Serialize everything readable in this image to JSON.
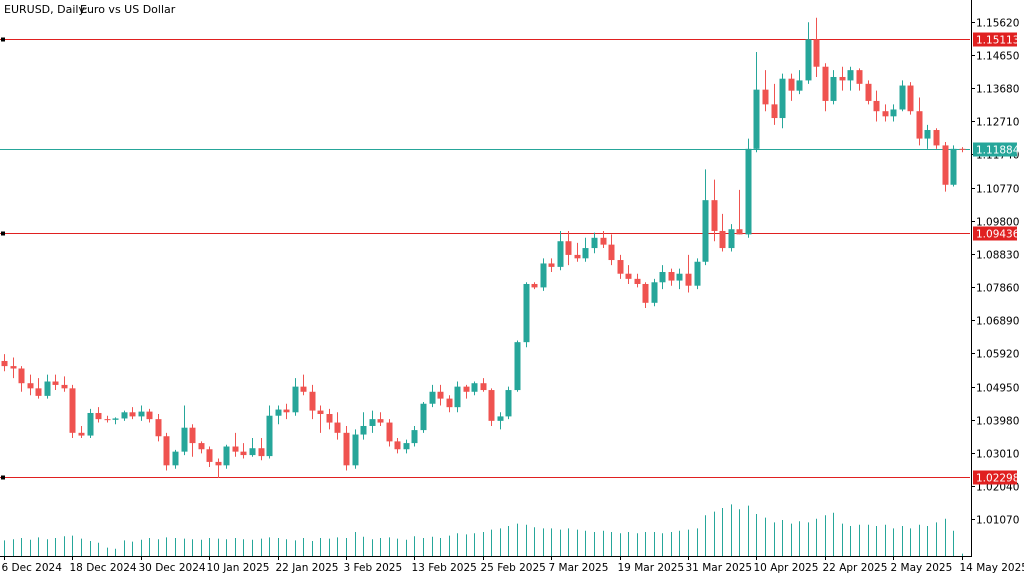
{
  "chart_data": {
    "type": "candlestick",
    "header": {
      "symbol": "EURUSD, Daily:",
      "description": "Euro vs US Dollar"
    },
    "ylim": [
      1.0,
      1.1625
    ],
    "y_ticks": [
      "1.15620",
      "1.14650",
      "1.13680",
      "1.12710",
      "1.11740",
      "1.10770",
      "1.09800",
      "1.08830",
      "1.07860",
      "1.06890",
      "1.05920",
      "1.04950",
      "1.03980",
      "1.03010",
      "1.02040",
      "1.01070"
    ],
    "x_ticks": [
      "6 Dec 2024",
      "18 Dec 2024",
      "30 Dec 2024",
      "10 Jan 2025",
      "22 Jan 2025",
      "3 Feb 2025",
      "13 Feb 2025",
      "25 Feb 2025",
      "7 Mar 2025",
      "19 Mar 2025",
      "31 Mar 2025",
      "10 Apr 2025",
      "22 Apr 2025",
      "2 May 2025",
      "14 May 2025"
    ],
    "x_tick_candle_index": [
      0,
      8,
      16,
      24,
      32,
      40,
      48,
      56,
      64,
      72,
      80,
      88,
      96,
      104,
      112
    ],
    "horizontal_lines": [
      {
        "value": 1.15113,
        "label": "1.15113",
        "color": "#e02020"
      },
      {
        "value": 1.11884,
        "label": "1.11884",
        "color": "#26a69a"
      },
      {
        "value": 1.09436,
        "label": "1.09436",
        "color": "#e02020"
      },
      {
        "value": 1.02298,
        "label": "1.02298",
        "color": "#e02020"
      }
    ],
    "colors": {
      "bull": "#26a69a",
      "bear": "#ef5350",
      "volume": "#26a69a",
      "axis": "#000000"
    },
    "candles": [
      {
        "o": 1.057,
        "h": 1.059,
        "l": 1.054,
        "c": 1.0555
      },
      {
        "o": 1.0555,
        "h": 1.058,
        "l": 1.052,
        "c": 1.0548
      },
      {
        "o": 1.0548,
        "h": 1.0555,
        "l": 1.048,
        "c": 1.0505
      },
      {
        "o": 1.0505,
        "h": 1.053,
        "l": 1.047,
        "c": 1.049
      },
      {
        "o": 1.049,
        "h": 1.052,
        "l": 1.046,
        "c": 1.0468
      },
      {
        "o": 1.0468,
        "h": 1.053,
        "l": 1.046,
        "c": 1.051
      },
      {
        "o": 1.051,
        "h": 1.053,
        "l": 1.0485,
        "c": 1.05
      },
      {
        "o": 1.05,
        "h": 1.0525,
        "l": 1.048,
        "c": 1.049
      },
      {
        "o": 1.049,
        "h": 1.05,
        "l": 1.0345,
        "c": 1.036
      },
      {
        "o": 1.036,
        "h": 1.038,
        "l": 1.0345,
        "c": 1.0352
      },
      {
        "o": 1.0352,
        "h": 1.043,
        "l": 1.0345,
        "c": 1.0418
      },
      {
        "o": 1.0418,
        "h": 1.0435,
        "l": 1.039,
        "c": 1.04
      },
      {
        "o": 1.04,
        "h": 1.041,
        "l": 1.039,
        "c": 1.0398
      },
      {
        "o": 1.0398,
        "h": 1.0405,
        "l": 1.0385,
        "c": 1.0402
      },
      {
        "o": 1.0402,
        "h": 1.0425,
        "l": 1.0395,
        "c": 1.042
      },
      {
        "o": 1.042,
        "h": 1.0435,
        "l": 1.04,
        "c": 1.0408
      },
      {
        "o": 1.0408,
        "h": 1.044,
        "l": 1.0395,
        "c": 1.0422
      },
      {
        "o": 1.0422,
        "h": 1.043,
        "l": 1.039,
        "c": 1.04
      },
      {
        "o": 1.04,
        "h": 1.0415,
        "l": 1.0335,
        "c": 1.035
      },
      {
        "o": 1.035,
        "h": 1.036,
        "l": 1.025,
        "c": 1.0265
      },
      {
        "o": 1.0265,
        "h": 1.031,
        "l": 1.0255,
        "c": 1.0305
      },
      {
        "o": 1.0305,
        "h": 1.044,
        "l": 1.0295,
        "c": 1.0375
      },
      {
        "o": 1.0375,
        "h": 1.0385,
        "l": 1.029,
        "c": 1.033
      },
      {
        "o": 1.033,
        "h": 1.0335,
        "l": 1.03,
        "c": 1.0312
      },
      {
        "o": 1.0312,
        "h": 1.032,
        "l": 1.026,
        "c": 1.0275
      },
      {
        "o": 1.0275,
        "h": 1.0285,
        "l": 1.0228,
        "c": 1.0265
      },
      {
        "o": 1.0265,
        "h": 1.0325,
        "l": 1.0255,
        "c": 1.032
      },
      {
        "o": 1.032,
        "h": 1.036,
        "l": 1.029,
        "c": 1.0305
      },
      {
        "o": 1.0305,
        "h": 1.033,
        "l": 1.0285,
        "c": 1.0295
      },
      {
        "o": 1.0295,
        "h": 1.0345,
        "l": 1.029,
        "c": 1.0315
      },
      {
        "o": 1.0315,
        "h": 1.0345,
        "l": 1.028,
        "c": 1.0292
      },
      {
        "o": 1.0292,
        "h": 1.044,
        "l": 1.0285,
        "c": 1.041
      },
      {
        "o": 1.041,
        "h": 1.044,
        "l": 1.0385,
        "c": 1.0428
      },
      {
        "o": 1.0428,
        "h": 1.0445,
        "l": 1.04,
        "c": 1.042
      },
      {
        "o": 1.042,
        "h": 1.052,
        "l": 1.041,
        "c": 1.0495
      },
      {
        "o": 1.0495,
        "h": 1.053,
        "l": 1.047,
        "c": 1.048
      },
      {
        "o": 1.048,
        "h": 1.05,
        "l": 1.04,
        "c": 1.0425
      },
      {
        "o": 1.0425,
        "h": 1.044,
        "l": 1.036,
        "c": 1.0415
      },
      {
        "o": 1.0415,
        "h": 1.043,
        "l": 1.037,
        "c": 1.039
      },
      {
        "o": 1.039,
        "h": 1.042,
        "l": 1.034,
        "c": 1.036
      },
      {
        "o": 1.036,
        "h": 1.038,
        "l": 1.025,
        "c": 1.0265
      },
      {
        "o": 1.0265,
        "h": 1.037,
        "l": 1.0255,
        "c": 1.0355
      },
      {
        "o": 1.0355,
        "h": 1.042,
        "l": 1.034,
        "c": 1.038
      },
      {
        "o": 1.038,
        "h": 1.0425,
        "l": 1.036,
        "c": 1.04
      },
      {
        "o": 1.04,
        "h": 1.042,
        "l": 1.038,
        "c": 1.039
      },
      {
        "o": 1.039,
        "h": 1.04,
        "l": 1.032,
        "c": 1.0335
      },
      {
        "o": 1.0335,
        "h": 1.0345,
        "l": 1.03,
        "c": 1.0312
      },
      {
        "o": 1.0312,
        "h": 1.034,
        "l": 1.03,
        "c": 1.033
      },
      {
        "o": 1.033,
        "h": 1.038,
        "l": 1.032,
        "c": 1.0368
      },
      {
        "o": 1.0368,
        "h": 1.045,
        "l": 1.036,
        "c": 1.0445
      },
      {
        "o": 1.0445,
        "h": 1.05,
        "l": 1.0435,
        "c": 1.048
      },
      {
        "o": 1.048,
        "h": 1.05,
        "l": 1.044,
        "c": 1.046
      },
      {
        "o": 1.046,
        "h": 1.047,
        "l": 1.042,
        "c": 1.0435
      },
      {
        "o": 1.0435,
        "h": 1.051,
        "l": 1.042,
        "c": 1.0495
      },
      {
        "o": 1.0495,
        "h": 1.05,
        "l": 1.046,
        "c": 1.048
      },
      {
        "o": 1.048,
        "h": 1.051,
        "l": 1.047,
        "c": 1.0505
      },
      {
        "o": 1.0505,
        "h": 1.052,
        "l": 1.048,
        "c": 1.0485
      },
      {
        "o": 1.0485,
        "h": 1.049,
        "l": 1.038,
        "c": 1.0395
      },
      {
        "o": 1.0395,
        "h": 1.042,
        "l": 1.037,
        "c": 1.0408
      },
      {
        "o": 1.0408,
        "h": 1.0495,
        "l": 1.04,
        "c": 1.0485
      },
      {
        "o": 1.0485,
        "h": 1.063,
        "l": 1.048,
        "c": 1.0625
      },
      {
        "o": 1.0625,
        "h": 1.08,
        "l": 1.061,
        "c": 1.0795
      },
      {
        "o": 1.0795,
        "h": 1.08,
        "l": 1.078,
        "c": 1.0785
      },
      {
        "o": 1.0785,
        "h": 1.087,
        "l": 1.0775,
        "c": 1.0855
      },
      {
        "o": 1.0855,
        "h": 1.087,
        "l": 1.083,
        "c": 1.0845
      },
      {
        "o": 1.0845,
        "h": 1.095,
        "l": 1.0835,
        "c": 1.092
      },
      {
        "o": 1.092,
        "h": 1.095,
        "l": 1.085,
        "c": 1.088
      },
      {
        "o": 1.088,
        "h": 1.0915,
        "l": 1.086,
        "c": 1.087
      },
      {
        "o": 1.087,
        "h": 1.093,
        "l": 1.086,
        "c": 1.09
      },
      {
        "o": 1.09,
        "h": 1.0945,
        "l": 1.0885,
        "c": 1.093
      },
      {
        "o": 1.093,
        "h": 1.095,
        "l": 1.09,
        "c": 1.091
      },
      {
        "o": 1.091,
        "h": 1.094,
        "l": 1.085,
        "c": 1.0865
      },
      {
        "o": 1.0865,
        "h": 1.088,
        "l": 1.081,
        "c": 1.0825
      },
      {
        "o": 1.0825,
        "h": 1.085,
        "l": 1.0795,
        "c": 1.081
      },
      {
        "o": 1.081,
        "h": 1.0825,
        "l": 1.0785,
        "c": 1.0795
      },
      {
        "o": 1.0795,
        "h": 1.08,
        "l": 1.0725,
        "c": 1.074
      },
      {
        "o": 1.074,
        "h": 1.081,
        "l": 1.073,
        "c": 1.08
      },
      {
        "o": 1.08,
        "h": 1.085,
        "l": 1.078,
        "c": 1.083
      },
      {
        "o": 1.083,
        "h": 1.084,
        "l": 1.079,
        "c": 1.0805
      },
      {
        "o": 1.0805,
        "h": 1.084,
        "l": 1.078,
        "c": 1.0825
      },
      {
        "o": 1.0825,
        "h": 1.088,
        "l": 1.077,
        "c": 1.079
      },
      {
        "o": 1.079,
        "h": 1.087,
        "l": 1.078,
        "c": 1.086
      },
      {
        "o": 1.086,
        "h": 1.113,
        "l": 1.085,
        "c": 1.104
      },
      {
        "o": 1.104,
        "h": 1.11,
        "l": 1.092,
        "c": 1.095
      },
      {
        "o": 1.095,
        "h": 1.1,
        "l": 1.089,
        "c": 1.09
      },
      {
        "o": 1.09,
        "h": 1.097,
        "l": 1.089,
        "c": 1.0955
      },
      {
        "o": 1.0955,
        "h": 1.107,
        "l": 1.094,
        "c": 1.094
      },
      {
        "o": 1.094,
        "h": 1.122,
        "l": 1.093,
        "c": 1.119
      },
      {
        "o": 1.119,
        "h": 1.1473,
        "l": 1.118,
        "c": 1.1363
      },
      {
        "o": 1.1363,
        "h": 1.142,
        "l": 1.13,
        "c": 1.132
      },
      {
        "o": 1.132,
        "h": 1.138,
        "l": 1.126,
        "c": 1.128
      },
      {
        "o": 1.128,
        "h": 1.141,
        "l": 1.125,
        "c": 1.1395
      },
      {
        "o": 1.1395,
        "h": 1.141,
        "l": 1.133,
        "c": 1.136
      },
      {
        "o": 1.136,
        "h": 1.142,
        "l": 1.135,
        "c": 1.139
      },
      {
        "o": 1.139,
        "h": 1.156,
        "l": 1.138,
        "c": 1.151
      },
      {
        "o": 1.151,
        "h": 1.1573,
        "l": 1.14,
        "c": 1.143
      },
      {
        "o": 1.143,
        "h": 1.144,
        "l": 1.13,
        "c": 1.133
      },
      {
        "o": 1.133,
        "h": 1.142,
        "l": 1.132,
        "c": 1.14
      },
      {
        "o": 1.14,
        "h": 1.143,
        "l": 1.136,
        "c": 1.139
      },
      {
        "o": 1.139,
        "h": 1.143,
        "l": 1.136,
        "c": 1.142
      },
      {
        "o": 1.142,
        "h": 1.1425,
        "l": 1.136,
        "c": 1.138
      },
      {
        "o": 1.138,
        "h": 1.139,
        "l": 1.132,
        "c": 1.133
      },
      {
        "o": 1.133,
        "h": 1.136,
        "l": 1.127,
        "c": 1.13
      },
      {
        "o": 1.13,
        "h": 1.132,
        "l": 1.127,
        "c": 1.1285
      },
      {
        "o": 1.1285,
        "h": 1.132,
        "l": 1.127,
        "c": 1.1305
      },
      {
        "o": 1.1305,
        "h": 1.139,
        "l": 1.13,
        "c": 1.1375
      },
      {
        "o": 1.1375,
        "h": 1.1385,
        "l": 1.129,
        "c": 1.13
      },
      {
        "o": 1.13,
        "h": 1.134,
        "l": 1.12,
        "c": 1.122
      },
      {
        "o": 1.122,
        "h": 1.126,
        "l": 1.119,
        "c": 1.1245
      },
      {
        "o": 1.1245,
        "h": 1.125,
        "l": 1.119,
        "c": 1.12
      },
      {
        "o": 1.12,
        "h": 1.121,
        "l": 1.1065,
        "c": 1.1085
      },
      {
        "o": 1.1085,
        "h": 1.12,
        "l": 1.108,
        "c": 1.119
      },
      {
        "o": 1.119,
        "h": 1.1195,
        "l": 1.118,
        "c": 1.1188
      }
    ],
    "volumes": [
      0.26,
      0.28,
      0.3,
      0.27,
      0.31,
      0.28,
      0.3,
      0.33,
      0.34,
      0.29,
      0.25,
      0.22,
      0.14,
      0.12,
      0.26,
      0.24,
      0.27,
      0.3,
      0.28,
      0.31,
      0.3,
      0.29,
      0.28,
      0.27,
      0.3,
      0.29,
      0.28,
      0.3,
      0.28,
      0.27,
      0.29,
      0.31,
      0.3,
      0.28,
      0.26,
      0.3,
      0.25,
      0.3,
      0.29,
      0.31,
      0.3,
      0.4,
      0.32,
      0.28,
      0.3,
      0.31,
      0.29,
      0.27,
      0.33,
      0.3,
      0.32,
      0.3,
      0.34,
      0.38,
      0.36,
      0.38,
      0.4,
      0.44,
      0.46,
      0.5,
      0.54,
      0.52,
      0.48,
      0.46,
      0.46,
      0.44,
      0.46,
      0.44,
      0.42,
      0.4,
      0.42,
      0.4,
      0.38,
      0.4,
      0.38,
      0.4,
      0.4,
      0.38,
      0.4,
      0.42,
      0.44,
      0.46,
      0.68,
      0.74,
      0.8,
      0.86,
      0.78,
      0.84,
      0.7,
      0.64,
      0.56,
      0.6,
      0.54,
      0.58,
      0.56,
      0.62,
      0.68,
      0.72,
      0.54,
      0.5,
      0.52,
      0.52,
      0.5,
      0.52,
      0.46,
      0.5,
      0.46,
      0.52,
      0.5,
      0.56,
      0.62,
      0.42,
      0.04
    ]
  }
}
